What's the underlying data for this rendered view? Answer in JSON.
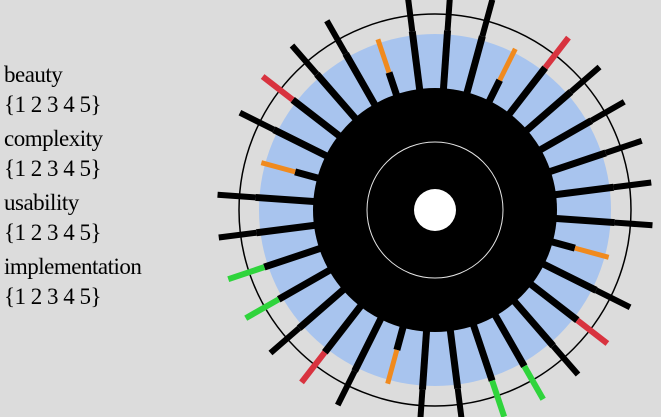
{
  "legend": {
    "items": [
      {
        "label": "beauty",
        "scale": "{1 2 3 4 5}"
      },
      {
        "label": "complexity",
        "scale": "{1 2 3 4 5}"
      },
      {
        "label": "usability",
        "scale": "{1 2 3 4 5}"
      },
      {
        "label": "implementation",
        "scale": "{1 2 3 4 5}"
      }
    ]
  },
  "colors": {
    "background": "#dcdcdc",
    "band": "#a8c4ee",
    "core": "#000000",
    "hole": "#ffffff",
    "rating_black": "#000000",
    "rating_orange": "#f08a1e",
    "rating_red": "#d8333f",
    "rating_green": "#2fd43c"
  },
  "spokes": [
    {
      "rating": "black"
    },
    {
      "rating": "black"
    },
    {
      "rating": "orange"
    },
    {
      "rating": "red"
    },
    {
      "rating": "black"
    },
    {
      "rating": "black"
    },
    {
      "rating": "black"
    },
    {
      "rating": "black"
    },
    {
      "rating": "black"
    },
    {
      "rating": "orange"
    },
    {
      "rating": "black"
    },
    {
      "rating": "red"
    },
    {
      "rating": "black"
    },
    {
      "rating": "green"
    },
    {
      "rating": "green"
    },
    {
      "rating": "black"
    },
    {
      "rating": "black"
    },
    {
      "rating": "orange"
    },
    {
      "rating": "black"
    },
    {
      "rating": "red"
    },
    {
      "rating": "black"
    },
    {
      "rating": "green"
    },
    {
      "rating": "green"
    },
    {
      "rating": "black"
    },
    {
      "rating": "black"
    },
    {
      "rating": "orange"
    },
    {
      "rating": "black"
    },
    {
      "rating": "red"
    },
    {
      "rating": "black"
    },
    {
      "rating": "black"
    },
    {
      "rating": "orange"
    },
    {
      "rating": "black"
    }
  ]
}
